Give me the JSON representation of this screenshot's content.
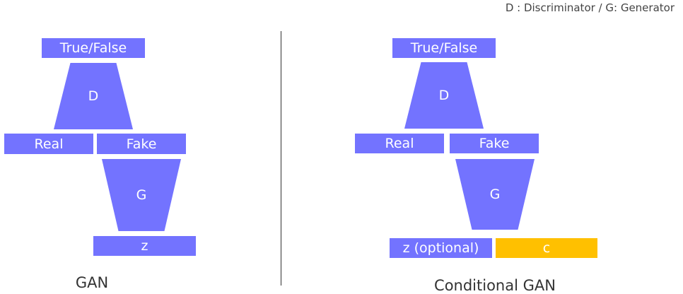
{
  "legend": "D : Discriminator / G: Generator",
  "colors": {
    "block": "#7373ff",
    "condition": "#ffc000",
    "text_on_block": "#ffffff"
  },
  "gan": {
    "caption": "GAN",
    "output": "True/False",
    "discriminator": "D",
    "real": "Real",
    "fake": "Fake",
    "generator": "G",
    "noise": "z"
  },
  "cgan": {
    "caption": "Conditional GAN",
    "output": "True/False",
    "discriminator": "D",
    "real": "Real",
    "fake": "Fake",
    "generator": "G",
    "noise": "z (optional)",
    "condition": "c"
  }
}
